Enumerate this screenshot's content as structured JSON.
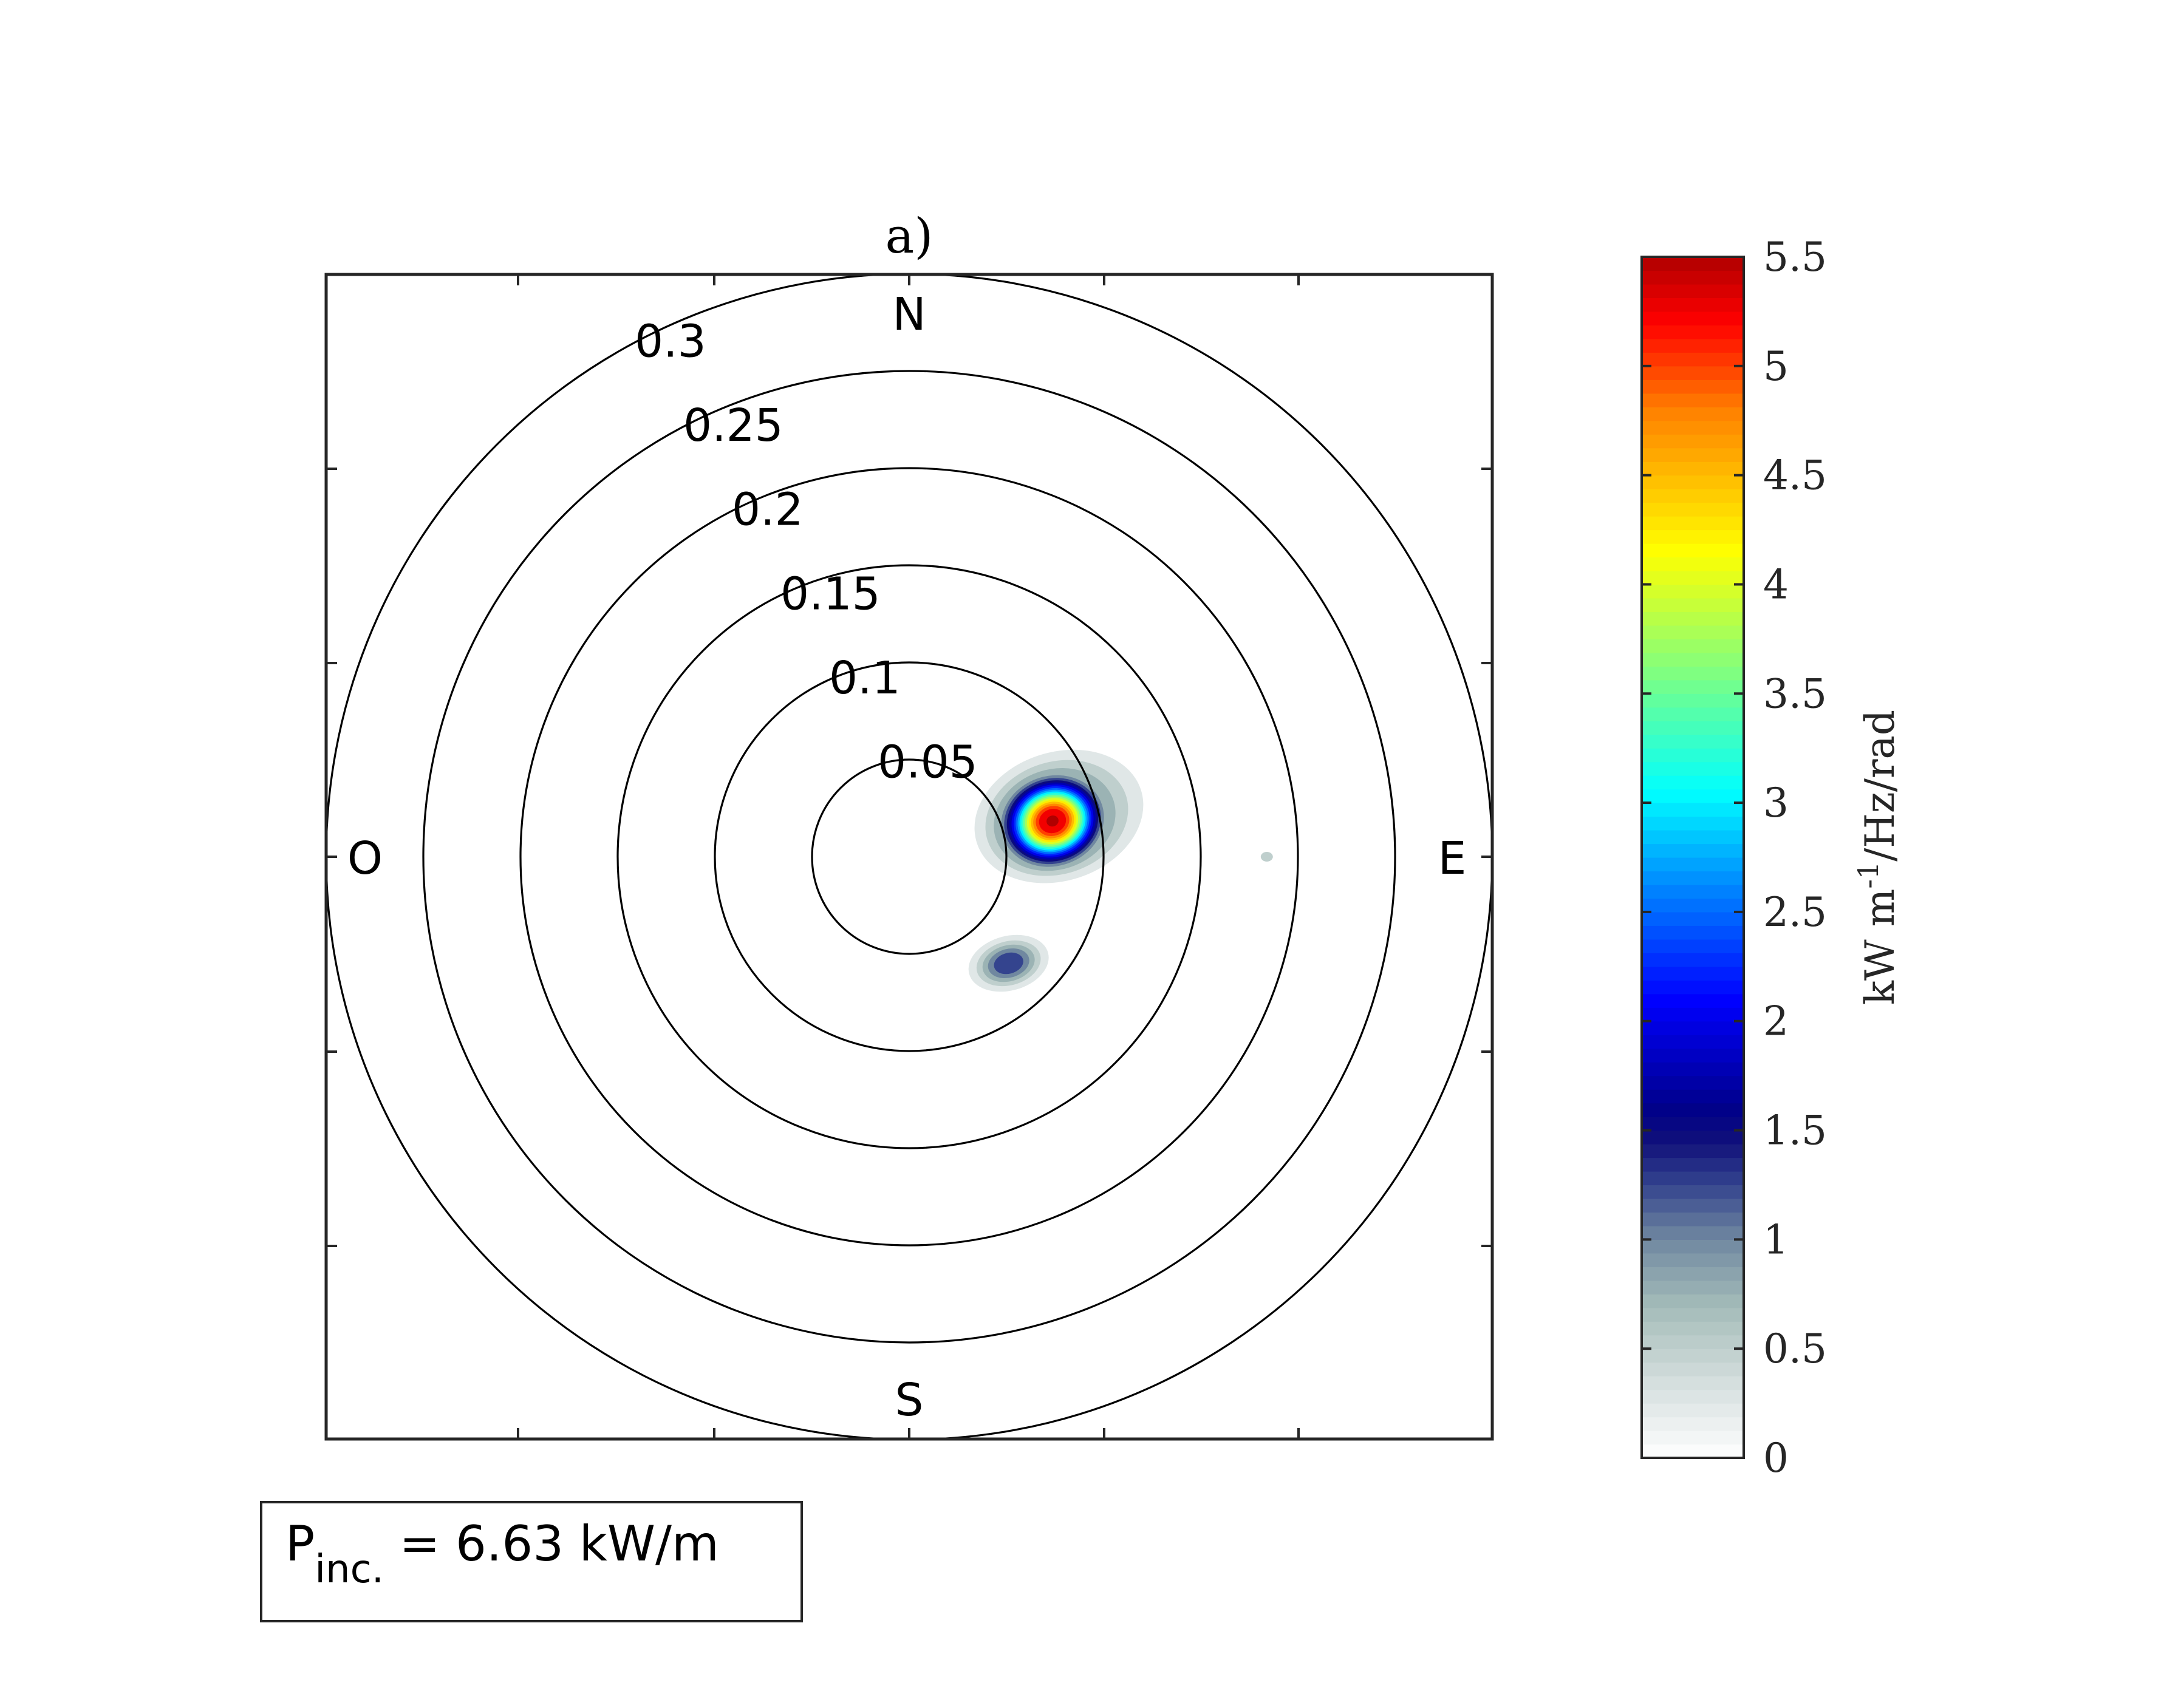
{
  "chart_data": {
    "type": "heatmap",
    "subtype": "polar directional wave-energy spectrum (filled contour)",
    "title": "a)",
    "radial_axis": {
      "rings": [
        0.05,
        0.1,
        0.15,
        0.2,
        0.25,
        0.3
      ],
      "ring_labels": [
        "0.05",
        "0.1",
        "0.15",
        "0.2",
        "0.25",
        "0.3"
      ],
      "rmax": 0.3
    },
    "compass_labels": {
      "north": "N",
      "south": "S",
      "east": "E",
      "west": "O"
    },
    "colorbar": {
      "label_main": "kW  m",
      "label_exponent": "-1",
      "label_rest": "/Hz/rad",
      "range": [
        0,
        5.5
      ],
      "tick_values": [
        0,
        0.5,
        1,
        1.5,
        2,
        2.5,
        3,
        3.5,
        4,
        4.5,
        5,
        5.5
      ],
      "tick_labels": [
        "0",
        "0.5",
        "1",
        "1.5",
        "2",
        "2.5",
        "3",
        "3.5",
        "4",
        "4.5",
        "5",
        "5.5"
      ],
      "stops": [
        {
          "v": 0.0,
          "c": "#ffffff"
        },
        {
          "v": 0.35,
          "c": "#d4dedd"
        },
        {
          "v": 0.7,
          "c": "#a3bbb8"
        },
        {
          "v": 1.0,
          "c": "#7088a0"
        },
        {
          "v": 1.25,
          "c": "#34448e"
        },
        {
          "v": 1.45,
          "c": "#10107a"
        },
        {
          "v": 1.6,
          "c": "#00008a"
        },
        {
          "v": 2.1,
          "c": "#0000ff"
        },
        {
          "v": 2.65,
          "c": "#0090ff"
        },
        {
          "v": 3.05,
          "c": "#00ffff"
        },
        {
          "v": 3.6,
          "c": "#80ff80"
        },
        {
          "v": 4.15,
          "c": "#ffff00"
        },
        {
          "v": 4.8,
          "c": "#ff8000"
        },
        {
          "v": 5.2,
          "c": "#ff0000"
        },
        {
          "v": 5.5,
          "c": "#b00000"
        }
      ]
    },
    "spectrum_peak": {
      "peak_value": 5.5,
      "peak_frequency": 0.076,
      "peak_direction_deg_from_north": 76
    },
    "secondary_lobe": {
      "value": 1.4,
      "frequency": 0.075,
      "direction_deg_from_north": 137
    },
    "minor_blip": {
      "value": 0.5,
      "frequency": 0.184,
      "direction_deg_from_north": 90
    }
  },
  "legend": {
    "symbol": "P",
    "subscript": "inc.",
    "text": " = 6.63 kW/m"
  }
}
